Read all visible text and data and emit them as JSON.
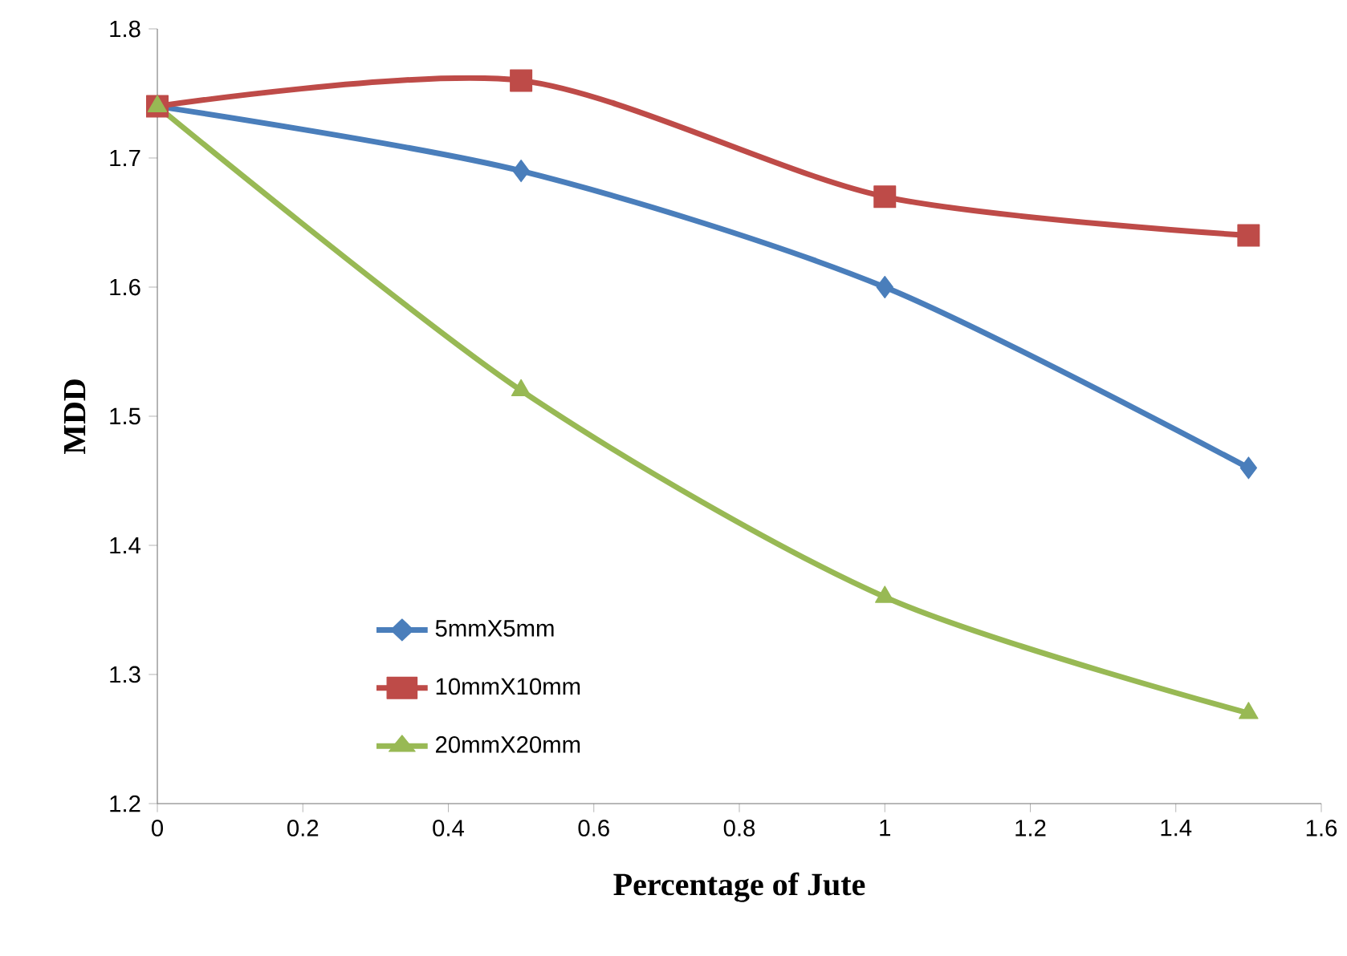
{
  "chart_data": {
    "type": "line",
    "xlabel": "Percentage of Jute",
    "ylabel": "MDD",
    "x": [
      0,
      0.5,
      1,
      1.5
    ],
    "series": [
      {
        "name": "5mmX5mm",
        "color": "#4a7ebb",
        "marker": "diamond",
        "values": [
          1.74,
          1.69,
          1.6,
          1.46
        ]
      },
      {
        "name": "10mmX10mm",
        "color": "#be4b48",
        "marker": "square",
        "values": [
          1.74,
          1.76,
          1.67,
          1.64
        ]
      },
      {
        "name": "20mmX20mm",
        "color": "#98b954",
        "marker": "triangle",
        "values": [
          1.74,
          1.52,
          1.36,
          1.27
        ]
      }
    ],
    "xlim": [
      0,
      1.6
    ],
    "xticks": [
      0,
      0.2,
      0.4,
      0.6,
      0.8,
      1,
      1.2,
      1.4,
      1.6
    ],
    "ylim": [
      1.2,
      1.8
    ],
    "yticks": [
      1.2,
      1.3,
      1.4,
      1.5,
      1.6,
      1.7,
      1.8
    ],
    "grid": false,
    "legend": "bottom left",
    "line_style": "solid"
  }
}
